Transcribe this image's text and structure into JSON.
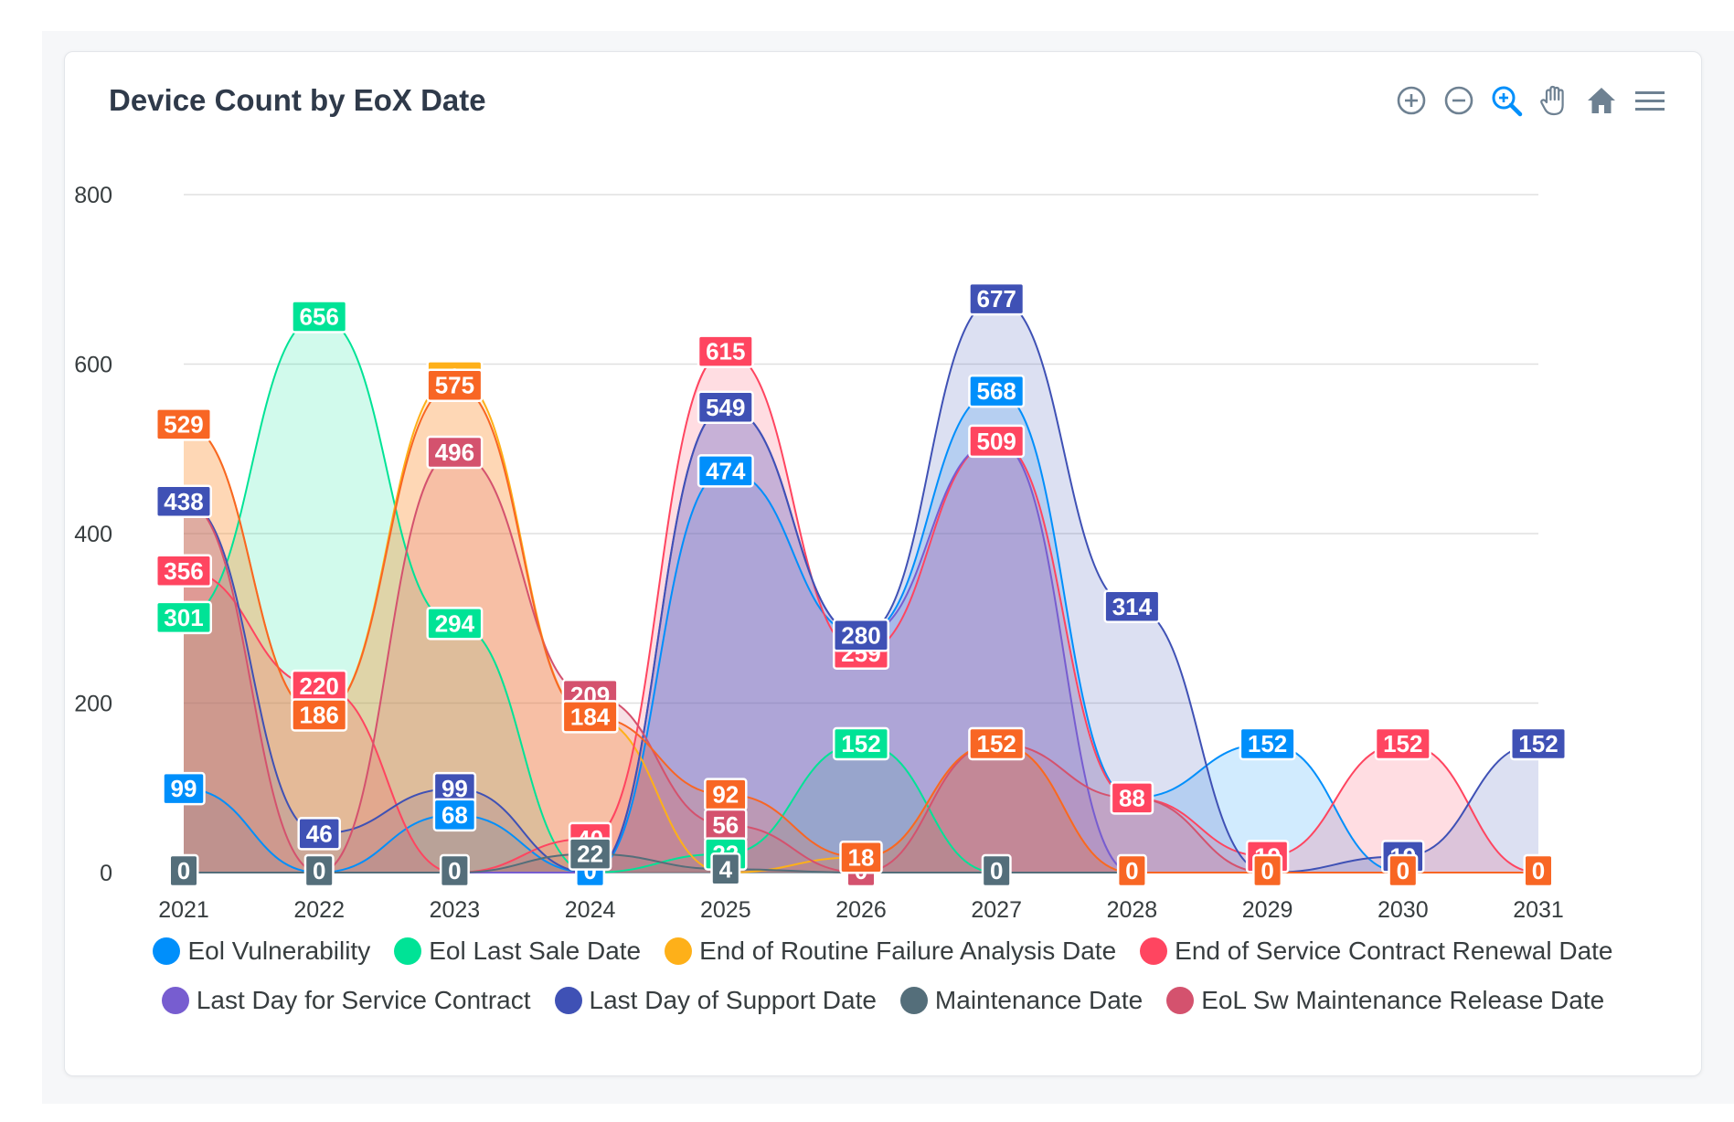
{
  "title": "Device Count by EoX Date",
  "toolbar": {
    "icons": [
      "zoom-in-icon",
      "zoom-out-icon",
      "selection-zoom-icon",
      "pan-hand-icon",
      "reset-home-icon",
      "menu-icon"
    ],
    "color": "#6e8192",
    "active_color": "#008ffb"
  },
  "chart_data": {
    "type": "area",
    "x": [
      "2021",
      "2022",
      "2023",
      "2024",
      "2025",
      "2026",
      "2027",
      "2028",
      "2029",
      "2030",
      "2031"
    ],
    "ylim": [
      0,
      800
    ],
    "yticks": [
      0,
      200,
      400,
      600,
      800
    ],
    "grid": true,
    "legend_position": "bottom",
    "series": [
      {
        "name": "Eol Vulnerability",
        "color": "#008ffb",
        "values": [
          99,
          0,
          68,
          0,
          474,
          280,
          568,
          88,
          152,
          0,
          0
        ]
      },
      {
        "name": "Eol Last Sale Date",
        "color": "#00e396",
        "values": [
          301,
          656,
          294,
          0,
          22,
          152,
          0,
          0,
          0,
          0,
          0
        ]
      },
      {
        "name": "End of Routine Failure Analysis Date",
        "color": "#feb019",
        "values": [
          529,
          186,
          585,
          184,
          0,
          18,
          152,
          0,
          0,
          0,
          0
        ]
      },
      {
        "name": "End of Service Contract Renewal Date",
        "color": "#ff4560",
        "values": [
          356,
          220,
          0,
          40,
          615,
          259,
          509,
          88,
          19,
          152,
          0
        ]
      },
      {
        "name": "Last Day for Service Contract",
        "color": "#775dd0",
        "values": [
          0,
          0,
          0,
          0,
          549,
          280,
          509,
          0,
          0,
          0,
          0
        ]
      },
      {
        "name": "Last Day of Support Date",
        "color": "#3f51b5",
        "values": [
          438,
          46,
          99,
          0,
          549,
          280,
          677,
          314,
          0,
          19,
          152
        ]
      },
      {
        "name": "Maintenance Date",
        "color": "#546e7a",
        "values": [
          0,
          0,
          0,
          22,
          4,
          0,
          0,
          0,
          0,
          0,
          0
        ]
      },
      {
        "name": "EoL Sw Maintenance Release Date",
        "color": "#d4526e",
        "values": [
          438,
          0,
          496,
          209,
          56,
          0,
          152,
          88,
          0,
          0,
          0
        ]
      }
    ],
    "orange_series": {
      "name": "",
      "color": "#f86624",
      "values": [
        529,
        186,
        575,
        184,
        92,
        18,
        152,
        0,
        0,
        0,
        0
      ]
    },
    "data_labels": [
      {
        "x": 0,
        "y": 99,
        "text": "99",
        "color": "#008ffb"
      },
      {
        "x": 0,
        "y": 301,
        "text": "301",
        "color": "#00e396"
      },
      {
        "x": 0,
        "y": 356,
        "text": "356",
        "color": "#ff4560"
      },
      {
        "x": 0,
        "y": 438,
        "text": "438",
        "color": "#3f51b5"
      },
      {
        "x": 0,
        "y": 529,
        "text": "529",
        "color": "#f86624"
      },
      {
        "x": 0,
        "y": 0,
        "text": "0",
        "color": "#546e7a"
      },
      {
        "x": 1,
        "y": 656,
        "text": "656",
        "color": "#00e396"
      },
      {
        "x": 1,
        "y": 220,
        "text": "220",
        "color": "#ff4560"
      },
      {
        "x": 1,
        "y": 186,
        "text": "186",
        "color": "#f86624"
      },
      {
        "x": 1,
        "y": 46,
        "text": "46",
        "color": "#3f51b5"
      },
      {
        "x": 1,
        "y": 0,
        "text": "0",
        "color": "#546e7a"
      },
      {
        "x": 2,
        "y": 585,
        "text": "585",
        "color": "#feb019"
      },
      {
        "x": 2,
        "y": 575,
        "text": "575",
        "color": "#f86624"
      },
      {
        "x": 2,
        "y": 496,
        "text": "496",
        "color": "#d4526e"
      },
      {
        "x": 2,
        "y": 294,
        "text": "294",
        "color": "#00e396"
      },
      {
        "x": 2,
        "y": 99,
        "text": "99",
        "color": "#3f51b5"
      },
      {
        "x": 2,
        "y": 68,
        "text": "68",
        "color": "#008ffb"
      },
      {
        "x": 2,
        "y": 0,
        "text": "0",
        "color": "#546e7a"
      },
      {
        "x": 3,
        "y": 209,
        "text": "209",
        "color": "#d4526e"
      },
      {
        "x": 3,
        "y": 184,
        "text": "184",
        "color": "#f86624"
      },
      {
        "x": 3,
        "y": 40,
        "text": "40",
        "color": "#ff4560"
      },
      {
        "x": 3,
        "y": 0,
        "text": "0",
        "color": "#008ffb"
      },
      {
        "x": 3,
        "y": 22,
        "text": "22",
        "color": "#546e7a"
      },
      {
        "x": 4,
        "y": 615,
        "text": "615",
        "color": "#ff4560"
      },
      {
        "x": 4,
        "y": 549,
        "text": "549",
        "color": "#3f51b5"
      },
      {
        "x": 4,
        "y": 474,
        "text": "474",
        "color": "#008ffb"
      },
      {
        "x": 4,
        "y": 92,
        "text": "92",
        "color": "#f86624"
      },
      {
        "x": 4,
        "y": 56,
        "text": "56",
        "color": "#d4526e"
      },
      {
        "x": 4,
        "y": 22,
        "text": "22",
        "color": "#00e396"
      },
      {
        "x": 4,
        "y": 4,
        "text": "4",
        "color": "#546e7a"
      },
      {
        "x": 5,
        "y": 259,
        "text": "259",
        "color": "#ff4560"
      },
      {
        "x": 5,
        "y": 280,
        "text": "280",
        "color": "#3f51b5"
      },
      {
        "x": 5,
        "y": 152,
        "text": "152",
        "color": "#00e396"
      },
      {
        "x": 5,
        "y": 0,
        "text": "0",
        "color": "#d4526e"
      },
      {
        "x": 5,
        "y": 18,
        "text": "18",
        "color": "#f86624"
      },
      {
        "x": 6,
        "y": 677,
        "text": "677",
        "color": "#3f51b5"
      },
      {
        "x": 6,
        "y": 568,
        "text": "568",
        "color": "#008ffb"
      },
      {
        "x": 6,
        "y": 509,
        "text": "509",
        "color": "#ff4560"
      },
      {
        "x": 6,
        "y": 152,
        "text": "152",
        "color": "#f86624"
      },
      {
        "x": 6,
        "y": 0,
        "text": "0",
        "color": "#546e7a"
      },
      {
        "x": 7,
        "y": 314,
        "text": "314",
        "color": "#3f51b5"
      },
      {
        "x": 7,
        "y": 88,
        "text": "88",
        "color": "#008ffb"
      },
      {
        "x": 7,
        "y": 88,
        "text": "88",
        "color": "#ff4560"
      },
      {
        "x": 7,
        "y": 0,
        "text": "0",
        "color": "#f86624"
      },
      {
        "x": 8,
        "y": 152,
        "text": "152",
        "color": "#008ffb"
      },
      {
        "x": 8,
        "y": 19,
        "text": "19",
        "color": "#ff4560"
      },
      {
        "x": 8,
        "y": 0,
        "text": "0",
        "color": "#f86624"
      },
      {
        "x": 9,
        "y": 152,
        "text": "152",
        "color": "#ff4560"
      },
      {
        "x": 9,
        "y": 19,
        "text": "19",
        "color": "#3f51b5"
      },
      {
        "x": 9,
        "y": 0,
        "text": "0",
        "color": "#f86624"
      },
      {
        "x": 10,
        "y": 152,
        "text": "152",
        "color": "#3f51b5"
      },
      {
        "x": 10,
        "y": 0,
        "text": "0",
        "color": "#f86624"
      }
    ]
  },
  "legend": {
    "rows": [
      [
        {
          "label": "Eol Vulnerability",
          "color": "#008ffb"
        },
        {
          "label": "Eol Last Sale Date",
          "color": "#00e396"
        },
        {
          "label": "End of Routine Failure Analysis Date",
          "color": "#feb019"
        },
        {
          "label": "End of Service Contract Renewal Date",
          "color": "#ff4560"
        }
      ],
      [
        {
          "label": "Last Day for Service Contract",
          "color": "#775dd0"
        },
        {
          "label": "Last Day of Support Date",
          "color": "#3f51b5"
        },
        {
          "label": "Maintenance Date",
          "color": "#546e7a"
        },
        {
          "label": "EoL Sw Maintenance Release Date",
          "color": "#d4526e"
        }
      ]
    ]
  }
}
